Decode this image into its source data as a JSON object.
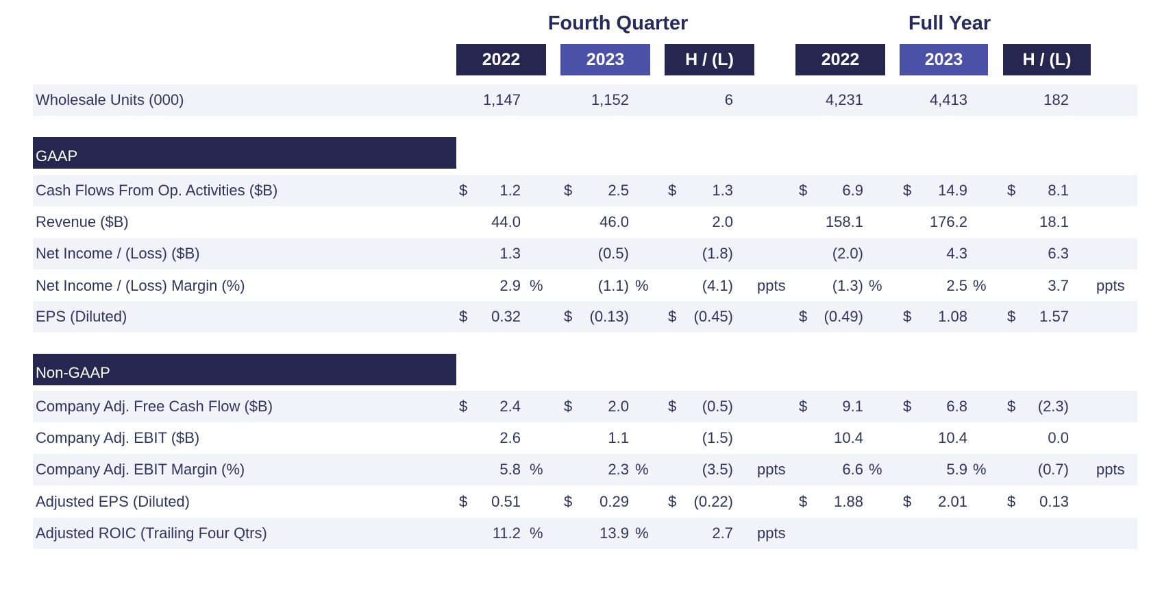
{
  "headers": {
    "fourth_quarter": "Fourth Quarter",
    "full_year": "Full Year",
    "cols": [
      "2022",
      "2023",
      "H / (L)",
      "2022",
      "2023",
      "H / (L)"
    ]
  },
  "sections": {
    "gaap": "GAAP",
    "non_gaap": "Non-GAAP"
  },
  "rows": [
    {
      "label": "Wholesale Units (000)",
      "cells": [
        {
          "c": "",
          "v": "1,147",
          "s": ""
        },
        {
          "c": "",
          "v": "1,152",
          "s": ""
        },
        {
          "c": "",
          "v": "6",
          "s": ""
        },
        {
          "c": "",
          "v": "4,231",
          "s": ""
        },
        {
          "c": "",
          "v": "4,413",
          "s": ""
        },
        {
          "c": "",
          "v": "182",
          "s": ""
        }
      ]
    },
    {
      "label": "Cash Flows From Op. Activities ($B)",
      "cells": [
        {
          "c": "$",
          "v": "1.2",
          "s": ""
        },
        {
          "c": "$",
          "v": "2.5",
          "s": ""
        },
        {
          "c": "$",
          "v": "1.3",
          "s": ""
        },
        {
          "c": "$",
          "v": "6.9",
          "s": ""
        },
        {
          "c": "$",
          "v": "14.9",
          "s": ""
        },
        {
          "c": "$",
          "v": "8.1",
          "s": ""
        }
      ]
    },
    {
      "label": "Revenue ($B)",
      "cells": [
        {
          "c": "",
          "v": "44.0",
          "s": ""
        },
        {
          "c": "",
          "v": "46.0",
          "s": ""
        },
        {
          "c": "",
          "v": "2.0",
          "s": ""
        },
        {
          "c": "",
          "v": "158.1",
          "s": ""
        },
        {
          "c": "",
          "v": "176.2",
          "s": ""
        },
        {
          "c": "",
          "v": "18.1",
          "s": ""
        }
      ]
    },
    {
      "label": "Net Income / (Loss) ($B)",
      "cells": [
        {
          "c": "",
          "v": "1.3",
          "s": ""
        },
        {
          "c": "",
          "v": "(0.5)",
          "s": ""
        },
        {
          "c": "",
          "v": "(1.8)",
          "s": ""
        },
        {
          "c": "",
          "v": "(2.0)",
          "s": ""
        },
        {
          "c": "",
          "v": "4.3",
          "s": ""
        },
        {
          "c": "",
          "v": "6.3",
          "s": ""
        }
      ]
    },
    {
      "label": "Net Income / (Loss) Margin (%)",
      "cells": [
        {
          "c": "",
          "v": "2.9",
          "s": "%"
        },
        {
          "c": "",
          "v": "(1.1)",
          "s": "%"
        },
        {
          "c": "",
          "v": "(4.1)",
          "s": "ppts"
        },
        {
          "c": "",
          "v": "(1.3)",
          "s": "%"
        },
        {
          "c": "",
          "v": "2.5",
          "s": "%"
        },
        {
          "c": "",
          "v": "3.7",
          "s": "ppts"
        }
      ]
    },
    {
      "label": "EPS (Diluted)",
      "cells": [
        {
          "c": "$",
          "v": "0.32",
          "s": ""
        },
        {
          "c": "$",
          "v": "(0.13)",
          "s": ""
        },
        {
          "c": "$",
          "v": "(0.45)",
          "s": ""
        },
        {
          "c": "$",
          "v": "(0.49)",
          "s": ""
        },
        {
          "c": "$",
          "v": "1.08",
          "s": ""
        },
        {
          "c": "$",
          "v": "1.57",
          "s": ""
        }
      ]
    },
    {
      "label": "Company Adj. Free Cash Flow ($B)",
      "cells": [
        {
          "c": "$",
          "v": "2.4",
          "s": ""
        },
        {
          "c": "$",
          "v": "2.0",
          "s": ""
        },
        {
          "c": "$",
          "v": "(0.5)",
          "s": ""
        },
        {
          "c": "$",
          "v": "9.1",
          "s": ""
        },
        {
          "c": "$",
          "v": "6.8",
          "s": ""
        },
        {
          "c": "$",
          "v": "(2.3)",
          "s": ""
        }
      ]
    },
    {
      "label": "Company Adj. EBIT ($B)",
      "cells": [
        {
          "c": "",
          "v": "2.6",
          "s": ""
        },
        {
          "c": "",
          "v": "1.1",
          "s": ""
        },
        {
          "c": "",
          "v": "(1.5)",
          "s": ""
        },
        {
          "c": "",
          "v": "10.4",
          "s": ""
        },
        {
          "c": "",
          "v": "10.4",
          "s": ""
        },
        {
          "c": "",
          "v": "0.0",
          "s": ""
        }
      ]
    },
    {
      "label": "Company Adj. EBIT Margin (%)",
      "cells": [
        {
          "c": "",
          "v": "5.8",
          "s": "%"
        },
        {
          "c": "",
          "v": "2.3",
          "s": "%"
        },
        {
          "c": "",
          "v": "(3.5)",
          "s": "ppts"
        },
        {
          "c": "",
          "v": "6.6",
          "s": "%"
        },
        {
          "c": "",
          "v": "5.9",
          "s": "%"
        },
        {
          "c": "",
          "v": "(0.7)",
          "s": "ppts"
        }
      ]
    },
    {
      "label": "Adjusted EPS (Diluted)",
      "cells": [
        {
          "c": "$",
          "v": "0.51",
          "s": ""
        },
        {
          "c": "$",
          "v": "0.29",
          "s": ""
        },
        {
          "c": "$",
          "v": "(0.22)",
          "s": ""
        },
        {
          "c": "$",
          "v": "1.88",
          "s": ""
        },
        {
          "c": "$",
          "v": "2.01",
          "s": ""
        },
        {
          "c": "$",
          "v": "0.13",
          "s": ""
        }
      ]
    },
    {
      "label": "Adjusted ROIC (Trailing Four Qtrs)",
      "cells": [
        {
          "c": "",
          "v": "11.2",
          "s": "%"
        },
        {
          "c": "",
          "v": "13.9",
          "s": "%"
        },
        {
          "c": "",
          "v": "2.7",
          "s": "ppts"
        },
        {
          "c": "",
          "v": "",
          "s": ""
        },
        {
          "c": "",
          "v": "",
          "s": ""
        },
        {
          "c": "",
          "v": "",
          "s": ""
        }
      ]
    }
  ]
}
